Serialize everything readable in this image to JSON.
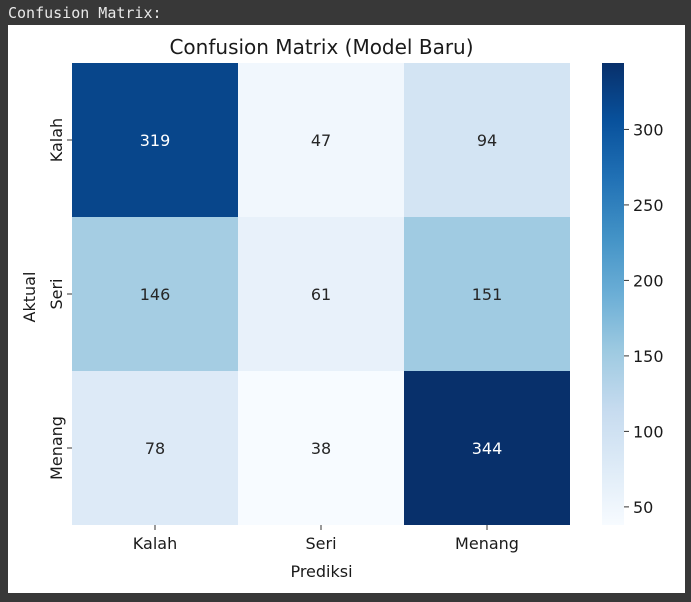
{
  "console": {
    "label": "Confusion Matrix:"
  },
  "chart_data": {
    "type": "heatmap",
    "title": "Confusion Matrix (Model Baru)",
    "xlabel": "Prediksi",
    "ylabel": "Aktual",
    "x_categories": [
      "Kalah",
      "Seri",
      "Menang"
    ],
    "y_categories": [
      "Kalah",
      "Seri",
      "Menang"
    ],
    "values": [
      [
        319,
        47,
        94
      ],
      [
        146,
        61,
        151
      ],
      [
        78,
        38,
        344
      ]
    ],
    "colormap": "Blues",
    "color_range": [
      38,
      344
    ],
    "colorbar_ticks": [
      50,
      100,
      150,
      200,
      250,
      300
    ],
    "colors": {
      "low": "#f7fbff",
      "high": "#08306b"
    }
  }
}
